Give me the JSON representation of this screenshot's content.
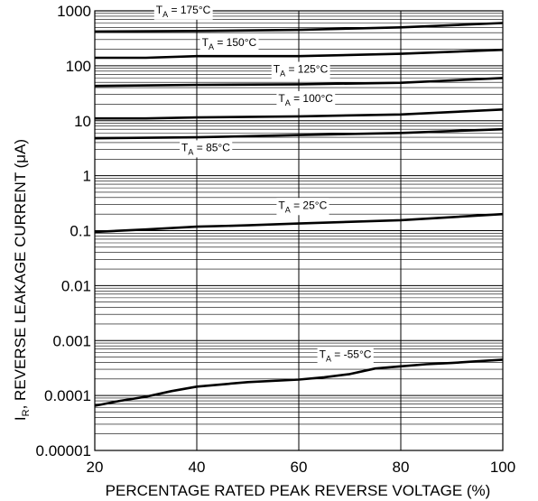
{
  "chart_data": {
    "type": "line",
    "title": "",
    "xlabel": "PERCENTAGE RATED PEAK REVERSE VOLTAGE (%)",
    "ylabel": "I",
    "ylabel_sub": "R",
    "ylabel_rest": ", REVERSE LEAKAGE CURRENT (μA)",
    "xlim": [
      20,
      100
    ],
    "ylim": [
      1e-05,
      1000
    ],
    "yscale": "log",
    "grid": true,
    "xticks": [
      {
        "value": 20,
        "label": "20"
      },
      {
        "value": 40,
        "label": "40"
      },
      {
        "value": 60,
        "label": "60"
      },
      {
        "value": 80,
        "label": "80"
      },
      {
        "value": 100,
        "label": "100"
      }
    ],
    "yticks": [
      {
        "value": 1000,
        "label": "1000"
      },
      {
        "value": 100,
        "label": "100"
      },
      {
        "value": 10,
        "label": "10"
      },
      {
        "value": 1,
        "label": "1"
      },
      {
        "value": 0.1,
        "label": "0.1"
      },
      {
        "value": 0.01,
        "label": "0.01"
      },
      {
        "value": 0.001,
        "label": "0.001"
      },
      {
        "value": 0.0001,
        "label": "0.0001"
      },
      {
        "value": 1e-05,
        "label": "0.00001"
      }
    ],
    "series": [
      {
        "name": "175°C",
        "label_x": 32,
        "label_y": 900,
        "x": [
          20,
          40,
          60,
          80,
          100
        ],
        "y": [
          420,
          430,
          450,
          500,
          600
        ]
      },
      {
        "name": "150°C",
        "label_x": 41,
        "label_y": 230,
        "x": [
          20,
          30,
          40,
          60,
          80,
          100
        ],
        "y": [
          140,
          140,
          150,
          150,
          165,
          195
        ]
      },
      {
        "name": "125°C",
        "label_x": 55,
        "label_y": 75,
        "x": [
          20,
          40,
          60,
          80,
          100
        ],
        "y": [
          43,
          45,
          46,
          49,
          60
        ]
      },
      {
        "name": "100°C",
        "label_x": 56,
        "label_y": 22,
        "x": [
          20,
          30,
          40,
          60,
          80,
          100
        ],
        "y": [
          11,
          11,
          11.5,
          12,
          13,
          16
        ]
      },
      {
        "name": "85°C",
        "label_x": 37,
        "label_y": 2.8,
        "x": [
          20,
          40,
          60,
          80,
          100
        ],
        "y": [
          4.8,
          5,
          5.5,
          6,
          7
        ]
      },
      {
        "name": "25°C",
        "label_x": 56,
        "label_y": 0.25,
        "x": [
          20,
          30,
          40,
          50,
          60,
          80,
          100
        ],
        "y": [
          0.095,
          0.105,
          0.118,
          0.125,
          0.135,
          0.155,
          0.2
        ]
      },
      {
        "name": "-55°C",
        "label_x": 64,
        "label_y": 0.00048,
        "x": [
          20,
          25,
          30,
          35,
          40,
          50,
          60,
          65,
          70,
          75,
          80,
          85,
          90,
          95,
          100
        ],
        "y": [
          6.5e-05,
          8e-05,
          9.5e-05,
          0.00012,
          0.000145,
          0.000175,
          0.000195,
          0.000215,
          0.000245,
          0.00031,
          0.00034,
          0.00037,
          0.00039,
          0.00042,
          0.00045
        ]
      }
    ]
  }
}
